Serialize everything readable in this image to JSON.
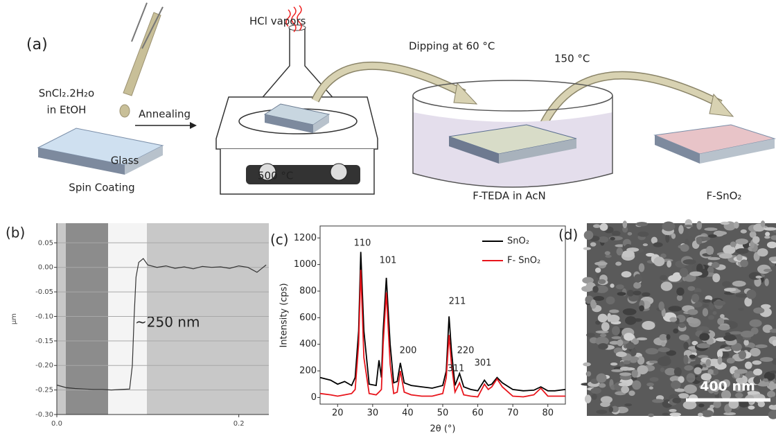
{
  "panel_a": {
    "label": "(a)",
    "hcl": "HCl vapors",
    "dipping": "Dipping at 60 °C",
    "temp_150": "150 °C",
    "precursor": "SnCl₂.2H₂o",
    "solvent": "in EtOH",
    "annealing": "Annealing",
    "glass": "Glass",
    "spin": "Spin Coating",
    "temp_500": "500 °C",
    "fteda": "F-TEDA in AcN",
    "product": "F-SnO₂"
  },
  "chart_data": [
    {
      "type": "line",
      "label": "(b)",
      "ylabel": "µm",
      "annotation": "~250 nm",
      "color": "#333333",
      "grid": true,
      "x": [
        0,
        0.01,
        0.02,
        0.03,
        0.04,
        0.05,
        0.06,
        0.07,
        0.08,
        0.083,
        0.085,
        0.087,
        0.09,
        0.095,
        0.1,
        0.11,
        0.12,
        0.13,
        0.14,
        0.15,
        0.16,
        0.17,
        0.18,
        0.19,
        0.2,
        0.21,
        0.22,
        0.23
      ],
      "values": [
        -0.24,
        -0.245,
        -0.247,
        -0.248,
        -0.249,
        -0.249,
        -0.25,
        -0.249,
        -0.248,
        -0.2,
        -0.1,
        -0.02,
        0.01,
        0.018,
        0.005,
        0.0,
        0.003,
        -0.002,
        0.001,
        -0.003,
        0.002,
        0.0,
        0.001,
        -0.002,
        0.003,
        0.0,
        -0.01,
        0.005
      ],
      "xlim": [
        0,
        0.233
      ],
      "xticks": [
        {
          "value": 0,
          "label": "0.0"
        },
        0.2
      ],
      "ylim": [
        -0.3,
        0.09
      ],
      "yticks": [
        0.05,
        {
          "value": 0,
          "label": "0.00"
        },
        -0.05,
        {
          "value": -0.1,
          "label": "-0.10"
        },
        -0.15,
        {
          "value": -0.2,
          "label": "-0.20"
        },
        -0.25,
        {
          "value": -0.3,
          "label": "-0.30"
        }
      ]
    },
    {
      "type": "line",
      "label": "(c)",
      "xlabel": "2θ (°)",
      "ylabel": "Intensity (cps)",
      "legend": "top-right",
      "annotations": [
        "110",
        "101",
        "200",
        "211",
        "220",
        "311",
        "301"
      ],
      "x": [
        15,
        18,
        20,
        22,
        24,
        25,
        26,
        26.6,
        27.5,
        29,
        31,
        31.8,
        32.5,
        33,
        33.9,
        35,
        36,
        37,
        37.9,
        39,
        41,
        44,
        47,
        50,
        51,
        51.8,
        52.5,
        53.5,
        54.8,
        56,
        58,
        60,
        61.9,
        63,
        64,
        65.5,
        67,
        70,
        73,
        76,
        78,
        80,
        82,
        85
      ],
      "series": [
        {
          "name": "SnO₂",
          "color": "#000000",
          "values": [
            150,
            130,
            100,
            120,
            90,
            150,
            500,
            1095,
            500,
            100,
            90,
            280,
            150,
            500,
            900,
            400,
            110,
            120,
            260,
            110,
            90,
            80,
            70,
            90,
            200,
            610,
            350,
            90,
            180,
            80,
            60,
            50,
            130,
            90,
            100,
            150,
            110,
            60,
            50,
            55,
            80,
            50,
            50,
            60
          ]
        },
        {
          "name": "F- SnO₂",
          "color": "#e8141b",
          "values": [
            30,
            20,
            10,
            20,
            30,
            60,
            400,
            960,
            300,
            30,
            20,
            40,
            60,
            400,
            790,
            250,
            30,
            40,
            200,
            40,
            20,
            10,
            10,
            30,
            150,
            470,
            250,
            40,
            110,
            20,
            10,
            5,
            100,
            60,
            80,
            140,
            80,
            10,
            5,
            20,
            70,
            10,
            10,
            10
          ]
        }
      ],
      "xlim": [
        15,
        85
      ],
      "xticks": [
        20,
        30,
        40,
        50,
        60,
        70,
        80
      ],
      "ylim": [
        -50,
        1290
      ],
      "yticks": [
        0,
        200,
        400,
        600,
        800,
        1000,
        1200
      ]
    }
  ],
  "panel_d": {
    "label": "(d)",
    "scale_bar": "400 nm"
  }
}
